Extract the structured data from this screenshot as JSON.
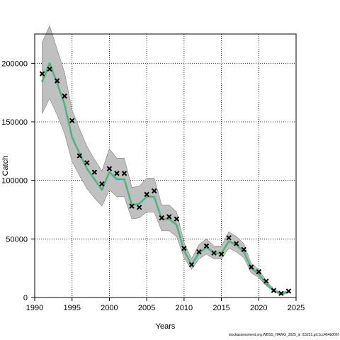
{
  "chart_data": {
    "type": "line",
    "xlabel": "Years",
    "ylabel": "Catch",
    "xlim": [
      1990,
      2025
    ],
    "ylim": [
      0,
      225000
    ],
    "x_ticks": [
      1990,
      1995,
      2000,
      2005,
      2010,
      2015,
      2020,
      2025
    ],
    "y_ticks": [
      0,
      50000,
      100000,
      150000,
      200000
    ],
    "grid": "dotted",
    "colors": {
      "band": "#c0c0c0",
      "band_edge": "#808080",
      "fit_outer": "#7ec8e3",
      "fit_inner": "#6aa84f",
      "observed": "#000000"
    },
    "observed": {
      "x": [
        1991,
        1992,
        1993,
        1994,
        1995,
        1996,
        1997,
        1998,
        1999,
        2000,
        2001,
        2002,
        2003,
        2004,
        2005,
        2006,
        2007,
        2008,
        2009,
        2010,
        2011,
        2012,
        2013,
        2014,
        2015,
        2016,
        2017,
        2018,
        2019,
        2020,
        2021,
        2022,
        2023,
        2024
      ],
      "y": [
        191000,
        195000,
        185000,
        172000,
        151000,
        121000,
        115000,
        107000,
        97000,
        110000,
        106000,
        106000,
        78000,
        77000,
        88000,
        91000,
        68000,
        69000,
        67000,
        42000,
        28000,
        39000,
        44000,
        38000,
        37000,
        51000,
        46000,
        41000,
        26000,
        22000,
        14000,
        6000,
        3500,
        5500
      ]
    },
    "fitted": {
      "x": [
        1991,
        1992,
        1993,
        1994,
        1995,
        1996,
        1997,
        1998,
        1999,
        2000,
        2001,
        2002,
        2003,
        2004,
        2005,
        2006,
        2007,
        2008,
        2009,
        2010,
        2011,
        2012,
        2013,
        2014,
        2015,
        2016,
        2017,
        2018,
        2019,
        2020,
        2021,
        2022,
        2023,
        2024
      ],
      "y": [
        184000,
        200000,
        183000,
        165000,
        137000,
        123000,
        110000,
        101000,
        92000,
        107000,
        101000,
        101000,
        79000,
        80000,
        86000,
        86000,
        67000,
        67000,
        62000,
        40000,
        28000,
        38000,
        43000,
        38000,
        38000,
        48000,
        45000,
        39000,
        25000,
        20000,
        12000,
        6000,
        3000,
        5000
      ],
      "lower": [
        157000,
        170000,
        156000,
        140000,
        116000,
        104000,
        93000,
        85000,
        78000,
        92000,
        86000,
        86000,
        67000,
        68000,
        73000,
        73000,
        57000,
        57000,
        52000,
        34000,
        24000,
        33000,
        37000,
        33000,
        33000,
        42000,
        39000,
        34000,
        21000,
        17000,
        10000,
        5000,
        2500,
        4000
      ],
      "upper": [
        218000,
        232000,
        212000,
        192000,
        160000,
        144000,
        129000,
        118000,
        108000,
        127000,
        119000,
        119000,
        94000,
        95000,
        102000,
        102000,
        79000,
        79000,
        73000,
        47000,
        33000,
        45000,
        50000,
        44000,
        44000,
        56000,
        52000,
        46000,
        29000,
        24000,
        14000,
        7500,
        3800,
        6200
      ]
    }
  },
  "footer": "stockassessment.org,WBSS_HAWG_2025_sl r15221,git:1cc464b806f"
}
